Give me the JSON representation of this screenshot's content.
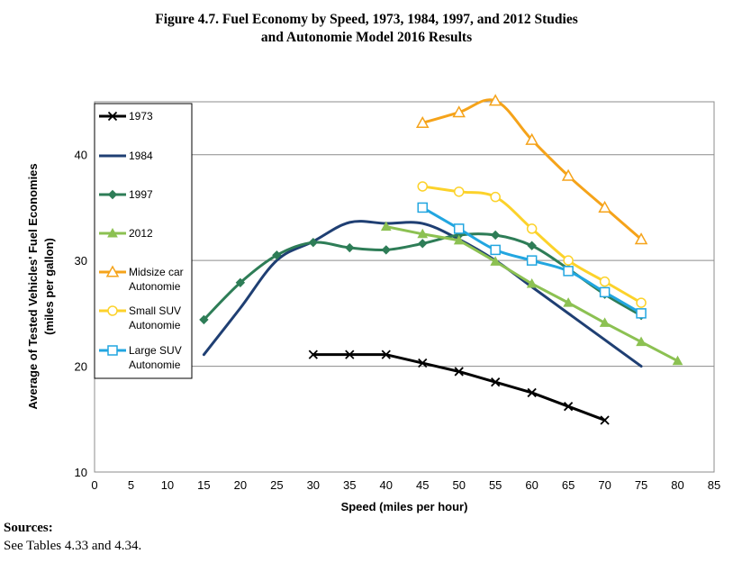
{
  "chart_data": {
    "type": "line",
    "title": [
      "Figure 4.7.  Fuel Economy by Speed, 1973, 1984, 1997, and 2012 Studies",
      "and Autonomie Model 2016 Results"
    ],
    "xlabel": "Speed (miles per hour)",
    "ylabel": [
      "Average of Tested Vehicles' Fuel Economies",
      "(miles per gallon)"
    ],
    "xlim": [
      0,
      85
    ],
    "ylim": [
      10,
      45
    ],
    "xticks": [
      0,
      5,
      10,
      15,
      20,
      25,
      30,
      35,
      40,
      45,
      50,
      55,
      60,
      65,
      70,
      75,
      80,
      85
    ],
    "yticks": [
      10,
      20,
      30,
      40
    ],
    "grid": "horizontal",
    "legend_position": "left",
    "series": [
      {
        "name": "1973",
        "color": "#000000",
        "marker": "x",
        "smooth": false,
        "x": [
          30,
          35,
          40,
          45,
          50,
          55,
          60,
          65,
          70
        ],
        "y": [
          21.1,
          21.1,
          21.1,
          20.3,
          19.5,
          18.5,
          17.5,
          16.2,
          14.9
        ]
      },
      {
        "name": "1984",
        "color": "#1f3f73",
        "marker": "none",
        "smooth": true,
        "x": [
          15,
          20,
          25,
          30,
          35,
          40,
          45,
          50,
          55,
          60,
          65,
          70,
          75
        ],
        "y": [
          21.1,
          25.5,
          30.0,
          31.8,
          33.6,
          33.5,
          33.5,
          32.0,
          30.0,
          27.5,
          25.0,
          22.5,
          20.0
        ]
      },
      {
        "name": "1997",
        "color": "#2e7d57",
        "marker": "diamond",
        "smooth": true,
        "x": [
          15,
          20,
          25,
          30,
          35,
          40,
          45,
          50,
          55,
          60,
          65,
          70,
          75
        ],
        "y": [
          24.4,
          27.9,
          30.5,
          31.7,
          31.2,
          31.0,
          31.6,
          32.4,
          32.4,
          31.4,
          29.2,
          26.8,
          24.8
        ]
      },
      {
        "name": "2012",
        "color": "#8cc152",
        "marker": "triangle",
        "smooth": false,
        "x": [
          40,
          45,
          50,
          55,
          60,
          65,
          70,
          75,
          80
        ],
        "y": [
          33.2,
          32.5,
          31.9,
          29.9,
          27.8,
          26.0,
          24.1,
          22.3,
          20.5
        ]
      },
      {
        "name": [
          "Midsize car",
          "Autonomie"
        ],
        "color": "#f5a31a",
        "marker": "triangle-open",
        "smooth": true,
        "x": [
          45,
          50,
          55,
          60,
          65,
          70,
          75
        ],
        "y": [
          43.0,
          44.0,
          45.1,
          41.4,
          38.0,
          35.0,
          32.0
        ]
      },
      {
        "name": [
          "Small SUV",
          "Autonomie"
        ],
        "color": "#fcd22a",
        "marker": "circle-open",
        "smooth": true,
        "x": [
          45,
          50,
          55,
          60,
          65,
          70,
          75
        ],
        "y": [
          37.0,
          36.5,
          36.0,
          33.0,
          30.0,
          28.0,
          26.0
        ]
      },
      {
        "name": [
          "Large SUV",
          "Autonomie"
        ],
        "color": "#22a6e0",
        "marker": "square-open",
        "smooth": true,
        "x": [
          45,
          50,
          55,
          60,
          65,
          70,
          75
        ],
        "y": [
          35.0,
          33.0,
          31.0,
          30.0,
          29.0,
          27.0,
          25.0
        ]
      }
    ]
  },
  "sources": {
    "heading": "Sources:",
    "text": "See Tables 4.33 and 4.34."
  }
}
